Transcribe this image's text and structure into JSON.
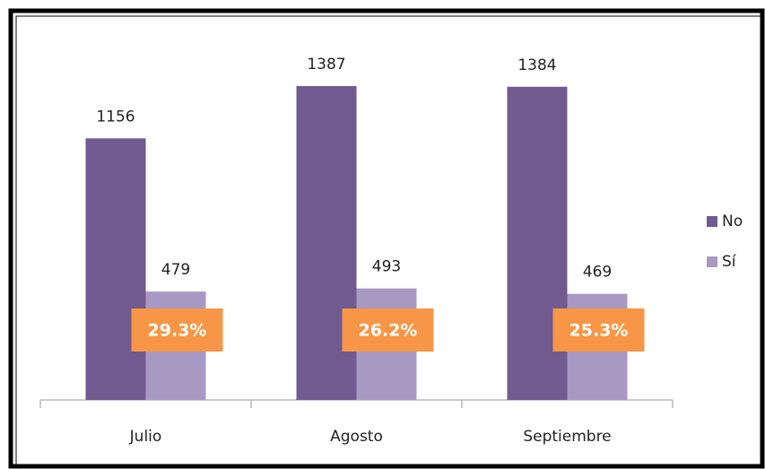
{
  "chart_data": {
    "type": "bar",
    "categories": [
      "Julio",
      "Agosto",
      "Septiembre"
    ],
    "series": [
      {
        "name": "No",
        "color": "#705a8f",
        "values": [
          1156,
          1387,
          1384
        ]
      },
      {
        "name": "Sí",
        "color": "#a899c3",
        "values": [
          479,
          493,
          469
        ]
      }
    ],
    "annotations": [
      "29.3%",
      "26.2%",
      "25.3%"
    ],
    "annotation_color": "#f79646",
    "legend": "right"
  }
}
